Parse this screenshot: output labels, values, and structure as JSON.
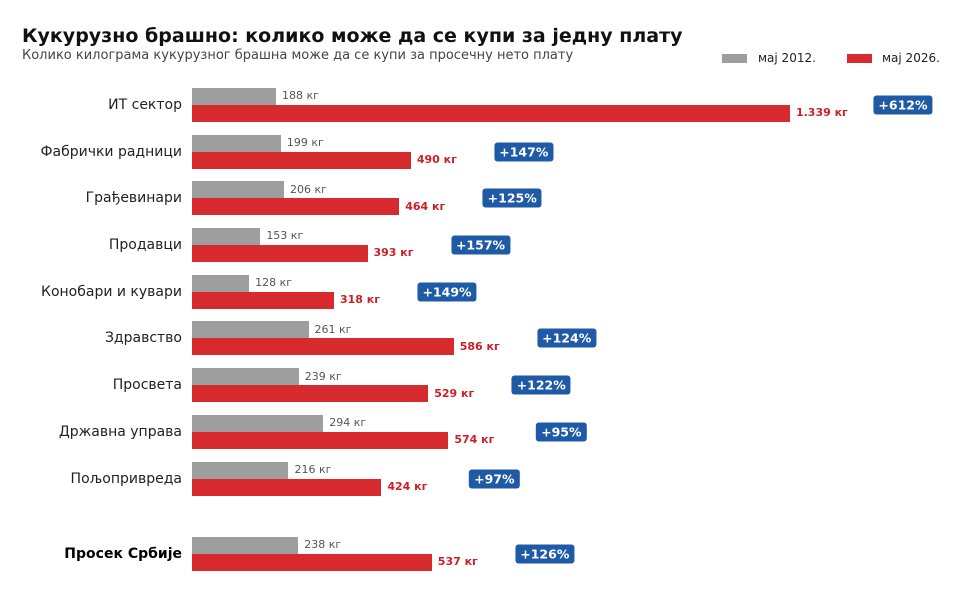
{
  "colors": {
    "label_2012": "#555555",
    "label_2026": "#cc1f26",
    "badge": "#1f5aa6"
  },
  "chart_data": {
    "type": "bar",
    "orientation": "horizontal",
    "title": "Кукурузно брашно: колико може да се купи за једну плату",
    "subtitle": "Колико килограма кукурузног брашна може да се купи за просечну нето плату",
    "categories": [
      "ИТ сектор",
      "Фабрички радници",
      "Грађевинари",
      "Продавци",
      "Конобари и кувари",
      "Здравство",
      "Просвета",
      "Државна управа",
      "Пољопривреда",
      "Просек Србије"
    ],
    "series": [
      {
        "name": "мај 2012.",
        "color": "#9e9e9e",
        "values": [
          188,
          199,
          206,
          153,
          128,
          261,
          239,
          294,
          216,
          238
        ],
        "labels": [
          "188 кг",
          "199 кг",
          "206 кг",
          "153 кг",
          "128 кг",
          "261 кг",
          "239 кг",
          "294 кг",
          "216 кг",
          "238 кг"
        ]
      },
      {
        "name": "мај 2026.",
        "color": "#d62a2f",
        "values": [
          1339,
          490,
          464,
          393,
          318,
          586,
          529,
          574,
          424,
          537
        ],
        "labels": [
          "1.339 кг",
          "490 кг",
          "464 кг",
          "393 кг",
          "318 кг",
          "586 кг",
          "529 кг",
          "574 кг",
          "424 кг",
          "537 кг"
        ]
      }
    ],
    "change_labels": [
      "+612%",
      "+147%",
      "+125%",
      "+157%",
      "+149%",
      "+124%",
      "+122%",
      "+95%",
      "+97%",
      "+126%"
    ],
    "xlim": [
      0,
      1675
    ],
    "grid": false,
    "axes_visible": false,
    "legend": "top-right"
  }
}
